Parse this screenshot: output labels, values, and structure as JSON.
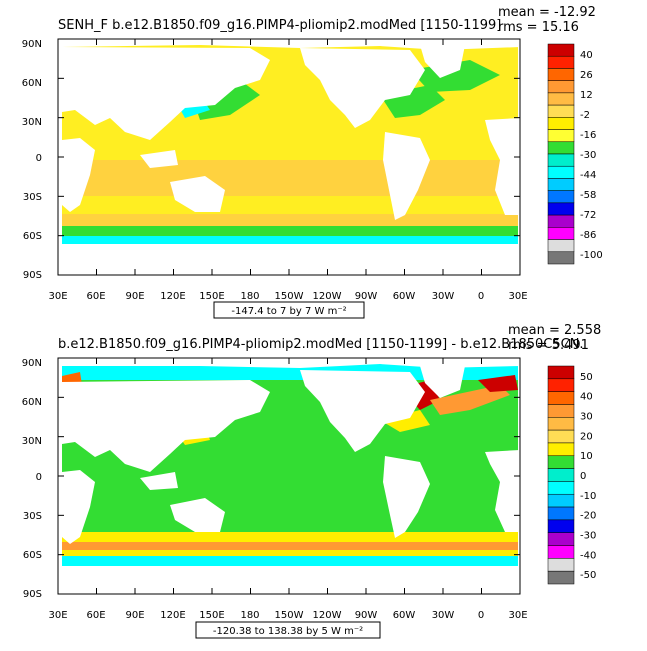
{
  "panels": [
    {
      "title": "SENH_F  b.e12.B1850.f09_g16.PIMP4-pliomip2.modMed  [1150-1199]",
      "mean_label": "mean = -12.92",
      "rms_label": "rms = 15.16",
      "range_label": "-147.4 to 7 by 7  W m⁻²",
      "lat_labels": [
        "90N",
        "60N",
        "30N",
        "0",
        "30S",
        "60S",
        "90S"
      ],
      "lon_labels": [
        "30E",
        "60E",
        "90E",
        "120E",
        "150E",
        "180",
        "150W",
        "120W",
        "90W",
        "60W",
        "30W",
        "0",
        "30E"
      ],
      "legend_labels": [
        "40",
        "26",
        "12",
        "-2",
        "-16",
        "-30",
        "-44",
        "-58",
        "-72",
        "-86",
        "-100"
      ],
      "legend_colors": [
        "#cc0000",
        "#ff2200",
        "#ff6600",
        "#ff9933",
        "#ffbb44",
        "#ffdd55",
        "#ffee00",
        "#ffff33",
        "#33dd33",
        "#00eecc",
        "#00ffff",
        "#00ccff",
        "#0077ff",
        "#0000ee",
        "#aa00cc",
        "#ff00ff",
        "#dddddd",
        "#777777"
      ]
    },
    {
      "title": "b.e12.B1850.f09_g16.PIMP4-pliomip2.modMed  [1150-1199]  -  b.e12.B1850C5CN.",
      "mean_label": "mean = 2.558",
      "rms_label": "rms = 5.491",
      "range_label": "-120.38 to 138.38 by 5  W m⁻²",
      "lat_labels": [
        "90N",
        "60N",
        "30N",
        "0",
        "30S",
        "60S",
        "90S"
      ],
      "lon_labels": [
        "30E",
        "60E",
        "90E",
        "120E",
        "150E",
        "180",
        "150W",
        "120W",
        "90W",
        "60W",
        "30W",
        "0",
        "30E"
      ],
      "legend_labels": [
        "50",
        "40",
        "30",
        "20",
        "10",
        "0",
        "-10",
        "-20",
        "-30",
        "-40",
        "-50"
      ],
      "legend_colors": [
        "#cc0000",
        "#ff2200",
        "#ff6600",
        "#ff9933",
        "#ffbb44",
        "#ffdd55",
        "#ffee00",
        "#33dd33",
        "#00eecc",
        "#00ffff",
        "#00ccff",
        "#0077ff",
        "#0000ee",
        "#aa00cc",
        "#ff00ff",
        "#dddddd",
        "#777777"
      ]
    }
  ],
  "colors": {
    "land": "#ffffff",
    "ocean_top": "#ffee22",
    "ocean_bottom": "#33dd33",
    "frame": "#000000"
  }
}
